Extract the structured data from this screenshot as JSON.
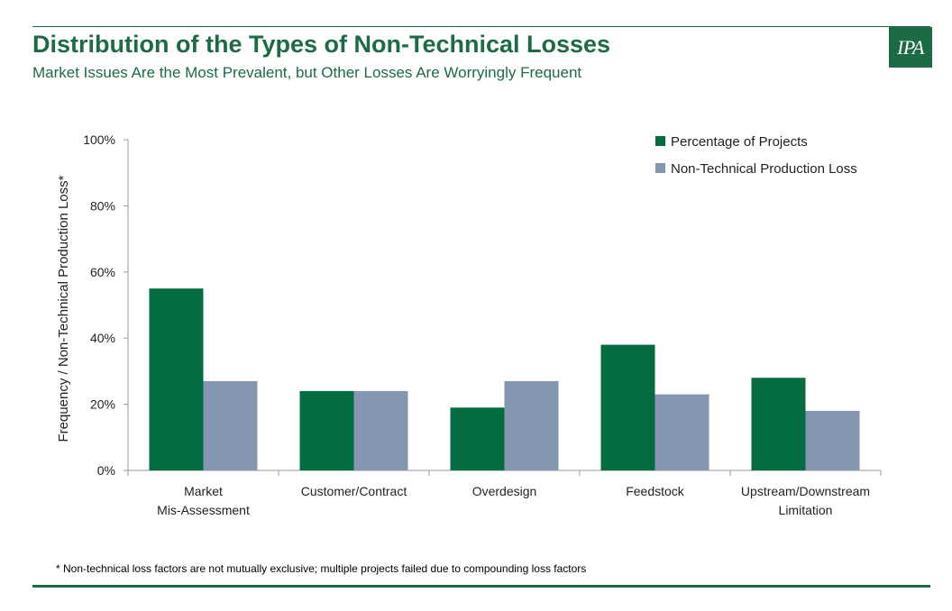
{
  "header": {
    "title": "Distribution of the Types of Non-Technical Losses",
    "subtitle": "Market Issues Are the Most Prevalent, but Other Losses Are Worryingly Frequent",
    "logo_text": "IPA"
  },
  "footnote": "* Non-technical loss factors are not mutually exclusive; multiple projects failed due to compounding loss factors",
  "colors": {
    "brand": "#1d6b45",
    "series_1": "#036c41",
    "series_2": "#8496b0"
  },
  "chart_data": {
    "type": "bar",
    "categories": [
      [
        "Market",
        "Mis-Assessment"
      ],
      [
        "Customer/Contract"
      ],
      [
        "Overdesign"
      ],
      [
        "Feedstock"
      ],
      [
        "Upstream/Downstream",
        "Limitation"
      ]
    ],
    "series": [
      {
        "name": "Percentage of Projects",
        "values": [
          55,
          24,
          19,
          38,
          28
        ]
      },
      {
        "name": "Non-Technical Production Loss",
        "values": [
          27,
          24,
          27,
          23,
          18
        ]
      }
    ],
    "ylabel": "Frequency / Non-Technical Production Loss*",
    "ylim": [
      0,
      100
    ],
    "yticks": [
      0,
      20,
      40,
      60,
      80,
      100
    ],
    "ytick_labels": [
      "0%",
      "20%",
      "40%",
      "60%",
      "80%",
      "100%"
    ],
    "grid": false,
    "legend_position": "top-right"
  }
}
